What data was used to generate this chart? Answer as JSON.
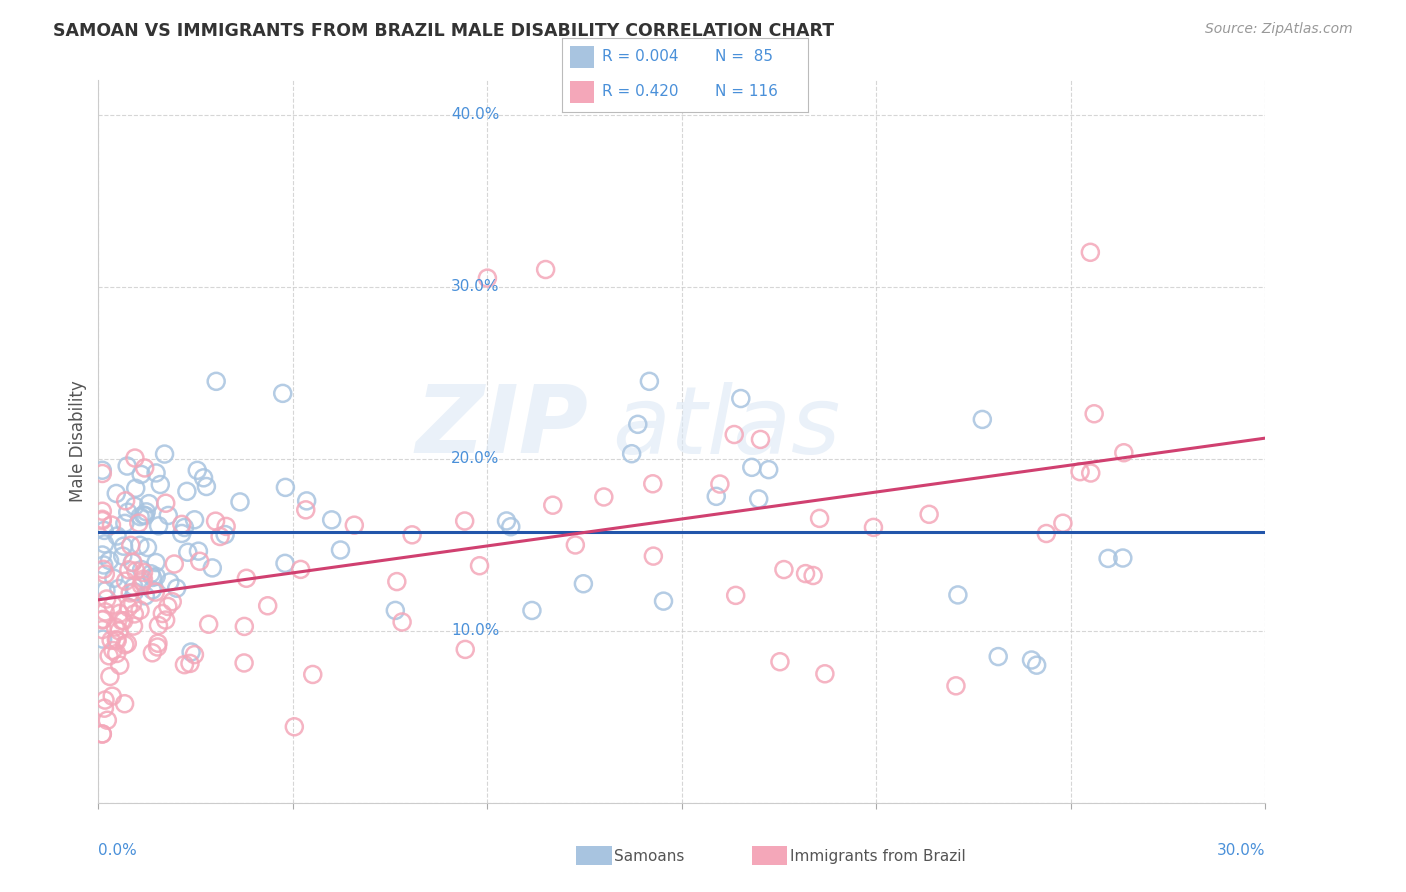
{
  "title": "SAMOAN VS IMMIGRANTS FROM BRAZIL MALE DISABILITY CORRELATION CHART",
  "source": "Source: ZipAtlas.com",
  "ylabel": "Male Disability",
  "xlim": [
    0.0,
    0.3
  ],
  "ylim": [
    0.0,
    0.42
  ],
  "xticks": [
    0.0,
    0.05,
    0.1,
    0.15,
    0.2,
    0.25,
    0.3
  ],
  "yticks": [
    0.0,
    0.1,
    0.2,
    0.3,
    0.4
  ],
  "legend_r1": "R = 0.004",
  "legend_n1": "N =  85",
  "legend_r2": "R = 0.420",
  "legend_n2": "N = 116",
  "color_samoan": "#a8c4e0",
  "color_brazil": "#f4a7b9",
  "color_line_samoan": "#2255aa",
  "color_line_brazil": "#d04070",
  "color_tick": "#4a90d9",
  "watermark_zip": "ZIP",
  "watermark_atlas": "atlas",
  "background_color": "#ffffff",
  "grid_color": "#cccccc"
}
